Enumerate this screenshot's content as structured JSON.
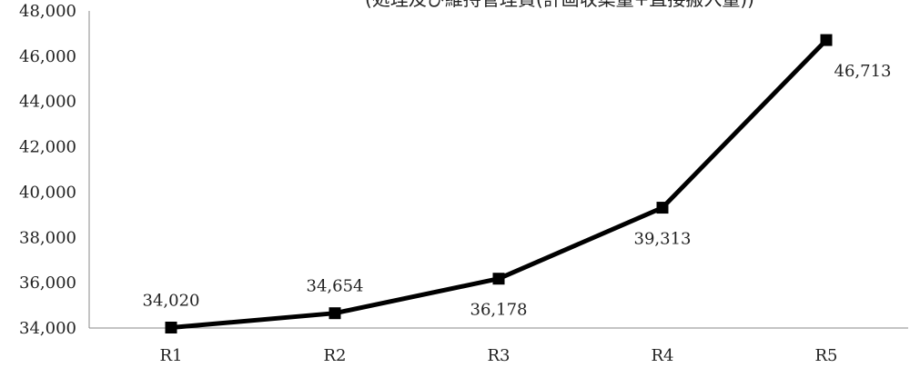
{
  "chart_data": {
    "type": "line",
    "title": "(処理及び維持管理費(計画収集量+直接搬入量))",
    "categories": [
      "R1",
      "R2",
      "R3",
      "R4",
      "R5"
    ],
    "series": [
      {
        "values": [
          34020,
          34654,
          36178,
          39313,
          46713
        ],
        "data_labels": [
          "34,020",
          "34,654",
          "36,178",
          "39,313",
          "46,713"
        ],
        "color": "#000000",
        "marker": "square"
      }
    ],
    "ylim": [
      34000,
      48000
    ],
    "y_ticks": [
      34000,
      36000,
      38000,
      40000,
      42000,
      44000,
      46000,
      48000
    ],
    "y_tick_labels": [
      "34,000",
      "36,000",
      "38,000",
      "40,000",
      "42,000",
      "44,000",
      "46,000",
      "48,000"
    ],
    "xlabel": "",
    "ylabel": "",
    "grid": false,
    "legend": "none"
  }
}
